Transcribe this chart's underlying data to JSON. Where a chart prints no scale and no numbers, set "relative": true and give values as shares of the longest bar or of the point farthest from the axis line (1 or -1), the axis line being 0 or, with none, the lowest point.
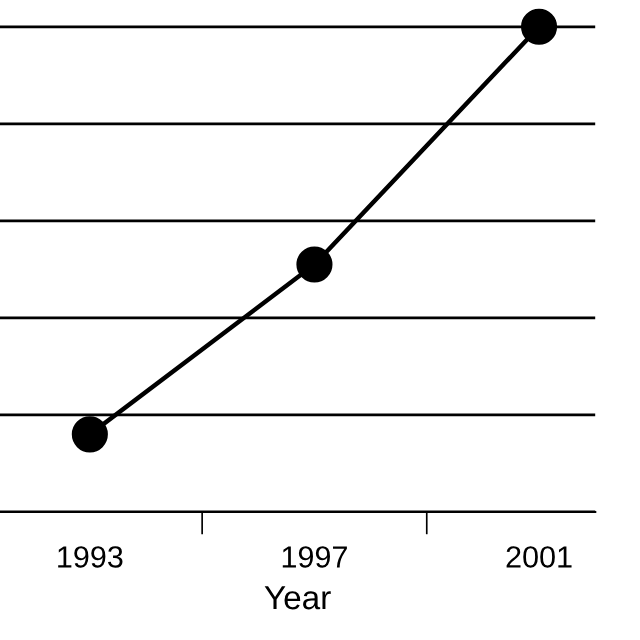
{
  "chart_data": {
    "type": "line",
    "xlabel": "Year",
    "categories": [
      "1993",
      "1997",
      "2001"
    ],
    "series": [
      {
        "color": "#000000",
        "values": [
          0.16,
          0.51,
          1.0
        ]
      }
    ],
    "relative": true,
    "grid": "y",
    "marker": "circle",
    "line_style": "solid",
    "legend": false
  }
}
